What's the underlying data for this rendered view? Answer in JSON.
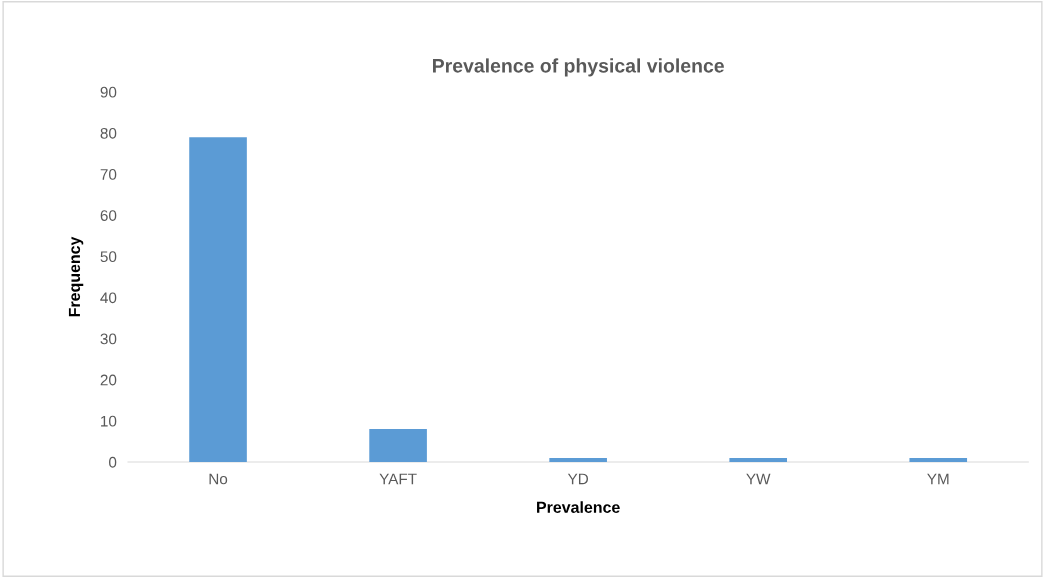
{
  "chart_data": {
    "type": "bar",
    "title": "Prevalence of physical violence",
    "xlabel": "Prevalence",
    "ylabel": "Frequency",
    "categories": [
      "No",
      "YAFT",
      "YD",
      "YW",
      "YM"
    ],
    "values": [
      79,
      8,
      1,
      1,
      1
    ],
    "color": "#5b9bd5",
    "ylim": [
      0,
      90
    ],
    "yticks": [
      0,
      10,
      20,
      30,
      40,
      50,
      60,
      70,
      80,
      90
    ],
    "grid": false
  }
}
